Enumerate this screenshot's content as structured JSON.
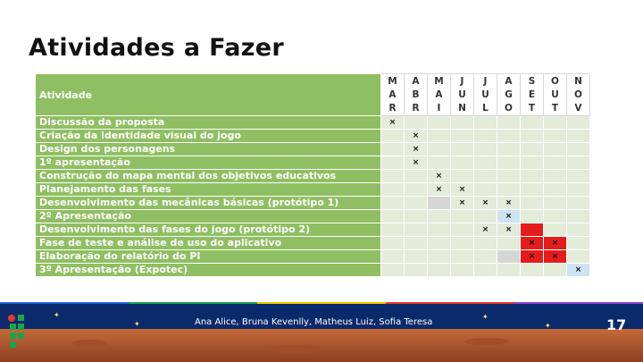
{
  "slide": {
    "title": "Atividades a Fazer",
    "authors": "Ana Alice, Bruna Kevenlly, Matheus Luiz, Sofia Teresa",
    "page_number": "17"
  },
  "table": {
    "header_label": "Atividade",
    "months": [
      "M A R",
      "A B R",
      "M A I",
      "J U N",
      "J U L",
      "A G O",
      "S E T",
      "O U T",
      "N O V"
    ],
    "rows": [
      {
        "label": "Discussão da proposta",
        "marks": [
          {
            "col": 0,
            "style": "plain"
          }
        ]
      },
      {
        "label": "Criação da identidade visual do jogo",
        "marks": [
          {
            "col": 1,
            "style": "plain"
          }
        ]
      },
      {
        "label": "Design dos personagens",
        "marks": [
          {
            "col": 1,
            "style": "plain"
          }
        ]
      },
      {
        "label": "1º apresentação",
        "marks": [
          {
            "col": 1,
            "style": "plain"
          }
        ]
      },
      {
        "label": "Construção do mapa mental dos objetivos educativos",
        "marks": [
          {
            "col": 2,
            "style": "plain"
          }
        ]
      },
      {
        "label": "Planejamento das fases",
        "marks": [
          {
            "col": 2,
            "style": "plain"
          },
          {
            "col": 3,
            "style": "plain"
          }
        ]
      },
      {
        "label": "Desenvolvimento das mecânicas básicas (protótipo 1)",
        "marks": [
          {
            "col": 2,
            "style": "grey_nox"
          },
          {
            "col": 3,
            "style": "plain"
          },
          {
            "col": 4,
            "style": "plain"
          },
          {
            "col": 5,
            "style": "plain"
          }
        ]
      },
      {
        "label": "2º Apresentação",
        "marks": [
          {
            "col": 5,
            "style": "blue"
          }
        ]
      },
      {
        "label": "Desenvolvimento das fases do jogo  (protótipo 2)",
        "marks": [
          {
            "col": 4,
            "style": "plain"
          },
          {
            "col": 5,
            "style": "plain"
          },
          {
            "col": 6,
            "style": "red_nox"
          }
        ]
      },
      {
        "label": "Fase de teste e análise de uso do aplicativo",
        "marks": [
          {
            "col": 6,
            "style": "red"
          },
          {
            "col": 7,
            "style": "red"
          }
        ]
      },
      {
        "label": "Elaboração do relatório do PI",
        "marks": [
          {
            "col": 5,
            "style": "grey_nox"
          },
          {
            "col": 6,
            "style": "red"
          },
          {
            "col": 7,
            "style": "red"
          }
        ]
      },
      {
        "label": "3º Apresentação (Expotec)",
        "marks": [
          {
            "col": 8,
            "style": "blue"
          }
        ]
      }
    ],
    "mark_symbol": "×"
  },
  "colors": {
    "green": "#8fbf62",
    "cell": "#e2ecd9",
    "red": "#e51c1c",
    "blue": "#cde3f2",
    "footer": "#0a2a6b"
  }
}
